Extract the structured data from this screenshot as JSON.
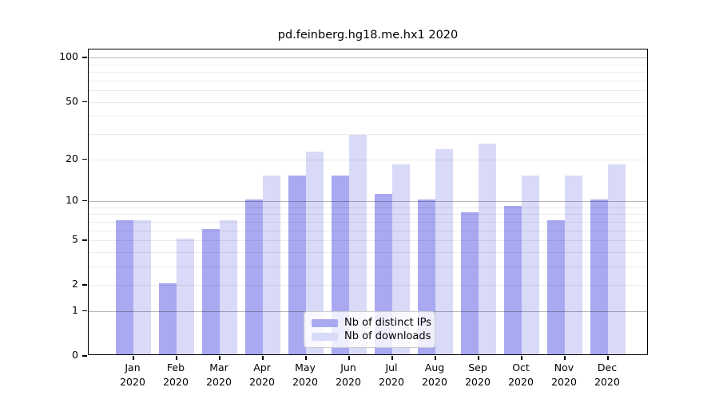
{
  "chart_data": {
    "type": "bar",
    "title": "pd.feinberg.hg18.me.hx1 2020",
    "categories": [
      "Jan",
      "Feb",
      "Mar",
      "Apr",
      "May",
      "Jun",
      "Jul",
      "Aug",
      "Sep",
      "Oct",
      "Nov",
      "Dec"
    ],
    "year": "2020",
    "series": [
      {
        "name": "Nb of distinct IPs",
        "values": [
          7,
          2,
          6,
          10,
          15,
          15,
          11,
          10,
          8,
          9,
          7,
          10
        ],
        "color": "#a9a9f2"
      },
      {
        "name": "Nb of downloads",
        "values": [
          7,
          5,
          7,
          15,
          22,
          29,
          18,
          23,
          25,
          15,
          15,
          18
        ],
        "color": "#d9d9f8"
      }
    ],
    "y_scale": "log10(1+v)",
    "ylim": [
      0,
      101
    ],
    "y_ticks": [
      100,
      50,
      20,
      10,
      5,
      2,
      1,
      0
    ],
    "y_gridlines_major": [
      1,
      10,
      100
    ],
    "y_gridlines_minor": [
      2,
      3,
      4,
      5,
      6,
      7,
      8,
      9,
      20,
      30,
      40,
      50,
      60,
      70,
      80,
      90
    ],
    "grid": true,
    "legend_position": "lower center",
    "colors": {
      "major_gridline": "rgba(0,0,0,0.28)",
      "minor_gridline": "rgba(0,0,0,0.075)",
      "axis_spine": "#000000",
      "background": "#ffffff"
    }
  }
}
